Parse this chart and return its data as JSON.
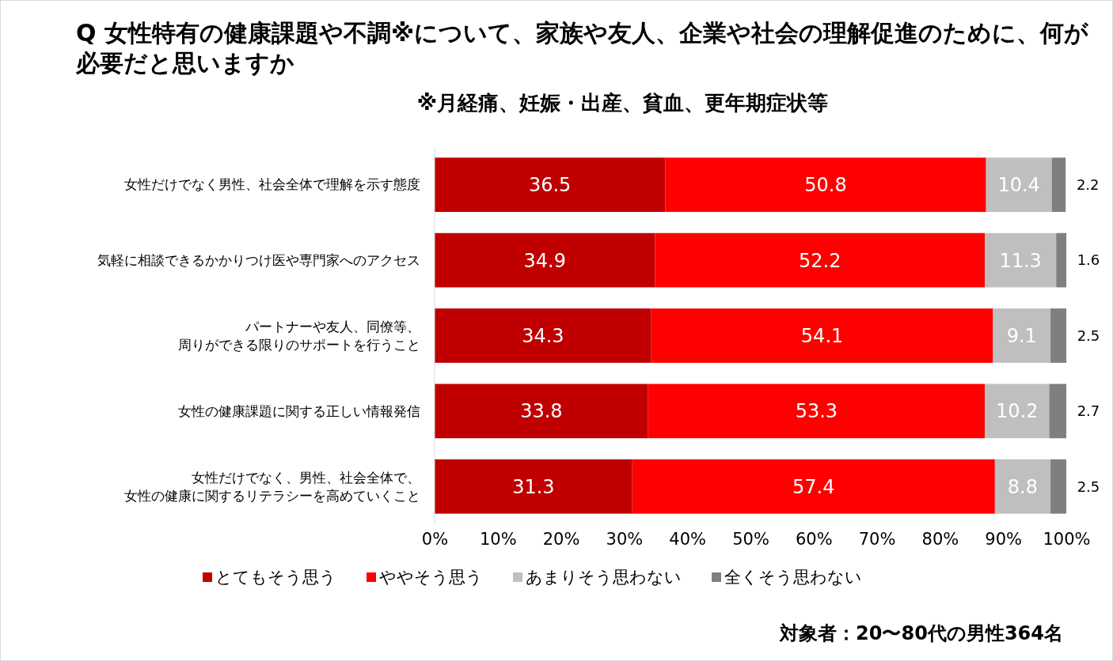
{
  "chart_data": {
    "type": "bar",
    "orientation": "horizontal",
    "stacked": true,
    "title": "Q 女性特有の健康課題や不調※について、家族や友人、企業や社会の理解促進のために、何が必要だと思いますか",
    "subtitle": "※月経痛、妊娠・出産、貧血、更年期症状等",
    "categories": [
      "女性だけでなく男性、社会全体で理解を示す態度",
      "気軽に相談できるかかりつけ医や専門家へのアクセス",
      "パートナーや友人、同僚等、周りができる限りのサポートを行うこと",
      "女性の健康課題に関する正しい情報発信",
      "女性だけでなく、男性、社会全体で、女性の健康に関するリテラシーを高めていくこと"
    ],
    "series": [
      {
        "name": "とてもそう思う",
        "color": "#c00000",
        "values": [
          36.5,
          34.9,
          34.3,
          33.8,
          31.3
        ]
      },
      {
        "name": "ややそう思う",
        "color": "#ff0000",
        "values": [
          50.8,
          52.2,
          54.1,
          53.3,
          57.4
        ]
      },
      {
        "name": "あまりそう思わない",
        "color": "#bfbfbf",
        "values": [
          10.4,
          11.3,
          9.1,
          10.2,
          8.8
        ]
      },
      {
        "name": "全くそう思わない",
        "color": "#7f7f7f",
        "values": [
          2.2,
          1.6,
          2.5,
          2.7,
          2.5
        ]
      }
    ],
    "xlim": [
      0,
      100
    ],
    "xticks": [
      {
        "value": 0,
        "label": "0%"
      },
      {
        "value": 10,
        "label": "10%"
      },
      {
        "value": 20,
        "label": "20%"
      },
      {
        "value": 30,
        "label": "30%"
      },
      {
        "value": 40,
        "label": "40%"
      },
      {
        "value": 50,
        "label": "50%"
      },
      {
        "value": 60,
        "label": "60%"
      },
      {
        "value": 70,
        "label": "70%"
      },
      {
        "value": 80,
        "label": "80%"
      },
      {
        "value": 90,
        "label": "90%"
      },
      {
        "value": 100,
        "label": "100%"
      }
    ],
    "data_labels": true,
    "legend": "bottom",
    "annotations": [
      "対象者：20〜80代の男性364名"
    ]
  }
}
